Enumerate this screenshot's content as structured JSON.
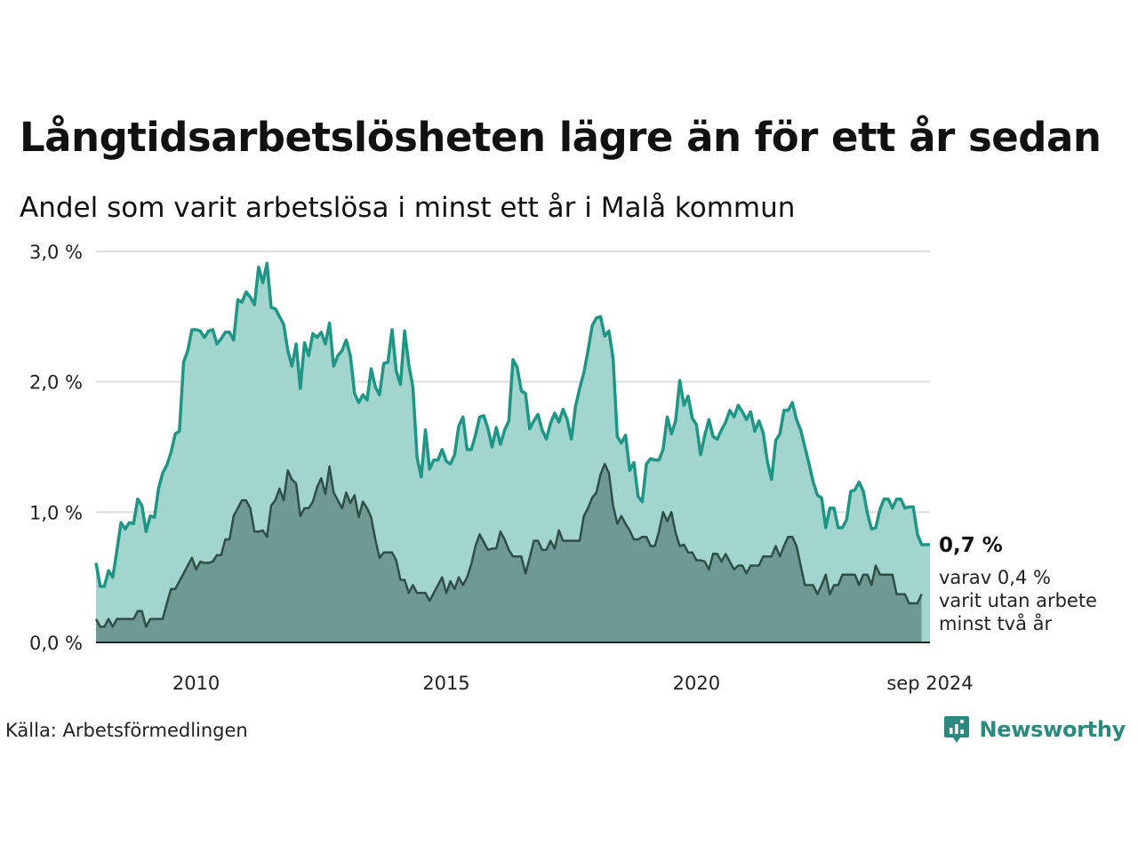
{
  "title": "Långtidsarbetslösheten lägre än för ett år sedan",
  "subtitle": "Andel som varit arbetslösa i minst ett år i Malå kommun",
  "source": "Källa: Arbetsförmedlingen",
  "brand": {
    "name": "Newsworthy",
    "icon": "newsworthy-logo-icon"
  },
  "colors": {
    "series_one_year_line": "#1f9585",
    "series_one_year_fill": "#a3d5cf",
    "series_two_year_line": "#2f4e48",
    "series_two_year_fill": "#6e9a93",
    "grid": "#dddddd",
    "brand": "#2a8a7e"
  },
  "end_label": {
    "value": "0,7 %",
    "note_lines": [
      "varav 0,4 %",
      "varit utan arbete",
      "minst två år"
    ]
  },
  "chart_data": {
    "type": "area",
    "x_start": "2008-01",
    "x_end": "2024-09",
    "frequency": "monthly",
    "xticks": [
      {
        "date": "2010-01",
        "label": "2010"
      },
      {
        "date": "2015-01",
        "label": "2015"
      },
      {
        "date": "2020-01",
        "label": "2020"
      },
      {
        "date": "2024-09",
        "label": "sep 2024"
      }
    ],
    "yticks": [
      {
        "value": 0.0,
        "label": "0,0 %"
      },
      {
        "value": 1.0,
        "label": "1,0 %"
      },
      {
        "value": 2.0,
        "label": "2,0 %"
      },
      {
        "value": 3.0,
        "label": "3,0 %"
      }
    ],
    "ylim": [
      0,
      3.0
    ],
    "grid": true,
    "series": [
      {
        "values": [
          0.61,
          0.43,
          0.43,
          0.55,
          0.5,
          0.7,
          0.92,
          0.87,
          0.92,
          0.91,
          1.1,
          1.05,
          0.85,
          0.97,
          0.96,
          1.18,
          1.3,
          1.36,
          1.46,
          1.6,
          1.62,
          2.15,
          2.24,
          2.4,
          2.4,
          2.39,
          2.34,
          2.39,
          2.4,
          2.29,
          2.33,
          2.38,
          2.38,
          2.32,
          2.63,
          2.61,
          2.69,
          2.65,
          2.59,
          2.88,
          2.76,
          2.91,
          2.57,
          2.56,
          2.5,
          2.44,
          2.24,
          2.12,
          2.29,
          1.95,
          2.3,
          2.2,
          2.37,
          2.34,
          2.38,
          2.29,
          2.45,
          2.12,
          2.2,
          2.24,
          2.32,
          2.2,
          1.91,
          1.84,
          1.9,
          1.86,
          2.1,
          1.96,
          1.9,
          2.14,
          2.15,
          2.4,
          2.08,
          1.98,
          2.39,
          2.13,
          1.96,
          1.42,
          1.27,
          1.63,
          1.33,
          1.4,
          1.4,
          1.48,
          1.39,
          1.37,
          1.44,
          1.66,
          1.73,
          1.48,
          1.48,
          1.59,
          1.73,
          1.74,
          1.64,
          1.5,
          1.65,
          1.52,
          1.63,
          1.7,
          2.17,
          2.11,
          1.93,
          1.91,
          1.64,
          1.7,
          1.75,
          1.63,
          1.56,
          1.68,
          1.76,
          1.69,
          1.79,
          1.71,
          1.56,
          1.81,
          1.95,
          2.07,
          2.24,
          2.43,
          2.49,
          2.5,
          2.35,
          2.39,
          2.18,
          1.58,
          1.53,
          1.59,
          1.32,
          1.38,
          1.12,
          1.08,
          1.37,
          1.41,
          1.4,
          1.4,
          1.48,
          1.73,
          1.6,
          1.7,
          2.01,
          1.82,
          1.89,
          1.72,
          1.67,
          1.44,
          1.59,
          1.71,
          1.58,
          1.56,
          1.63,
          1.69,
          1.78,
          1.73,
          1.82,
          1.77,
          1.71,
          1.77,
          1.62,
          1.7,
          1.61,
          1.39,
          1.25,
          1.55,
          1.6,
          1.78,
          1.78,
          1.84,
          1.71,
          1.63,
          1.5,
          1.37,
          1.23,
          1.13,
          1.11,
          0.88,
          1.03,
          1.03,
          0.88,
          0.88,
          0.94,
          1.16,
          1.17,
          1.23,
          1.16,
          0.99,
          0.87,
          0.88,
          1.02,
          1.1,
          1.1,
          1.03,
          1.1,
          1.1,
          1.03,
          1.04,
          1.04,
          0.83,
          0.75,
          0.75,
          0.75
        ]
      },
      {
        "values": [
          0.18,
          0.12,
          0.12,
          0.18,
          0.12,
          0.18,
          0.18,
          0.18,
          0.18,
          0.18,
          0.24,
          0.24,
          0.12,
          0.18,
          0.18,
          0.18,
          0.18,
          0.3,
          0.41,
          0.41,
          0.47,
          0.53,
          0.59,
          0.65,
          0.56,
          0.62,
          0.61,
          0.61,
          0.62,
          0.67,
          0.67,
          0.79,
          0.79,
          0.97,
          1.03,
          1.09,
          1.09,
          1.03,
          0.85,
          0.85,
          0.86,
          0.81,
          1.05,
          1.09,
          1.18,
          1.09,
          1.32,
          1.25,
          1.22,
          0.97,
          1.03,
          1.03,
          1.08,
          1.19,
          1.26,
          1.14,
          1.35,
          1.15,
          1.09,
          1.03,
          1.15,
          1.07,
          1.13,
          0.96,
          1.08,
          1.03,
          0.96,
          0.79,
          0.65,
          0.69,
          0.69,
          0.69,
          0.63,
          0.48,
          0.48,
          0.38,
          0.44,
          0.38,
          0.38,
          0.38,
          0.32,
          0.38,
          0.44,
          0.5,
          0.38,
          0.47,
          0.41,
          0.5,
          0.44,
          0.5,
          0.6,
          0.74,
          0.83,
          0.77,
          0.71,
          0.72,
          0.72,
          0.85,
          0.79,
          0.71,
          0.66,
          0.66,
          0.66,
          0.53,
          0.65,
          0.78,
          0.78,
          0.71,
          0.71,
          0.78,
          0.72,
          0.86,
          0.78,
          0.78,
          0.78,
          0.78,
          0.78,
          0.97,
          1.03,
          1.11,
          1.15,
          1.29,
          1.37,
          1.3,
          1.05,
          0.91,
          0.97,
          0.91,
          0.86,
          0.79,
          0.79,
          0.81,
          0.81,
          0.74,
          0.74,
          0.85,
          1.0,
          0.93,
          1.0,
          0.84,
          0.74,
          0.75,
          0.69,
          0.69,
          0.63,
          0.63,
          0.62,
          0.56,
          0.68,
          0.68,
          0.62,
          0.68,
          0.62,
          0.56,
          0.59,
          0.59,
          0.53,
          0.59,
          0.59,
          0.59,
          0.66,
          0.66,
          0.66,
          0.74,
          0.66,
          0.74,
          0.81,
          0.81,
          0.74,
          0.59,
          0.44,
          0.44,
          0.44,
          0.37,
          0.44,
          0.52,
          0.37,
          0.44,
          0.44,
          0.52,
          0.52,
          0.52,
          0.52,
          0.44,
          0.52,
          0.52,
          0.44,
          0.59,
          0.52,
          0.52,
          0.52,
          0.52,
          0.37,
          0.37,
          0.37,
          0.3,
          0.3,
          0.3,
          0.37
        ]
      }
    ]
  }
}
